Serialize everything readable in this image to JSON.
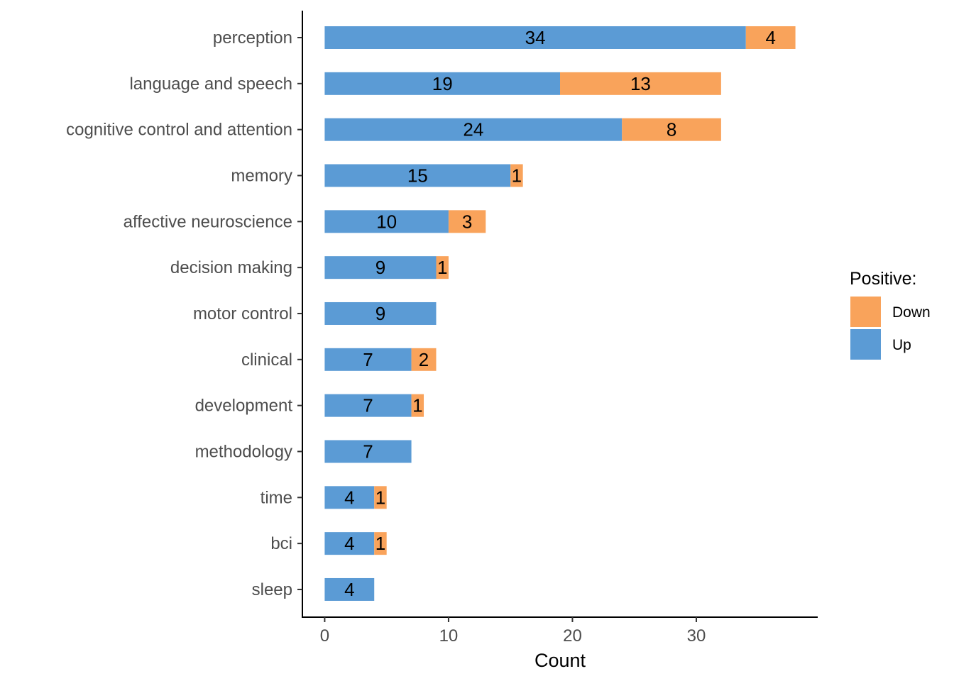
{
  "chart_data": {
    "type": "bar",
    "orientation": "horizontal",
    "stacked": true,
    "categories": [
      "perception",
      "language and speech",
      "cognitive control and attention",
      "memory",
      "affective neuroscience",
      "decision making",
      "motor control",
      "clinical",
      "development",
      "methodology",
      "time",
      "bci",
      "sleep"
    ],
    "series": [
      {
        "name": "Up",
        "color": "#5b9bd5",
        "values": [
          34,
          19,
          24,
          15,
          10,
          9,
          9,
          7,
          7,
          7,
          4,
          4,
          4
        ]
      },
      {
        "name": "Down",
        "color": "#f9a35b",
        "values": [
          4,
          13,
          8,
          1,
          3,
          1,
          0,
          2,
          1,
          0,
          1,
          1,
          0
        ]
      }
    ],
    "xlabel": "Count",
    "ylabel": "",
    "xticks": [
      0,
      10,
      20,
      30
    ],
    "xlim": [
      -1.8,
      39.8
    ],
    "grid": false,
    "legend": {
      "title": "Positive:",
      "position": "right",
      "entries": [
        {
          "label": "Down",
          "color": "#f9a35b"
        },
        {
          "label": "Up",
          "color": "#5b9bd5"
        }
      ]
    }
  }
}
